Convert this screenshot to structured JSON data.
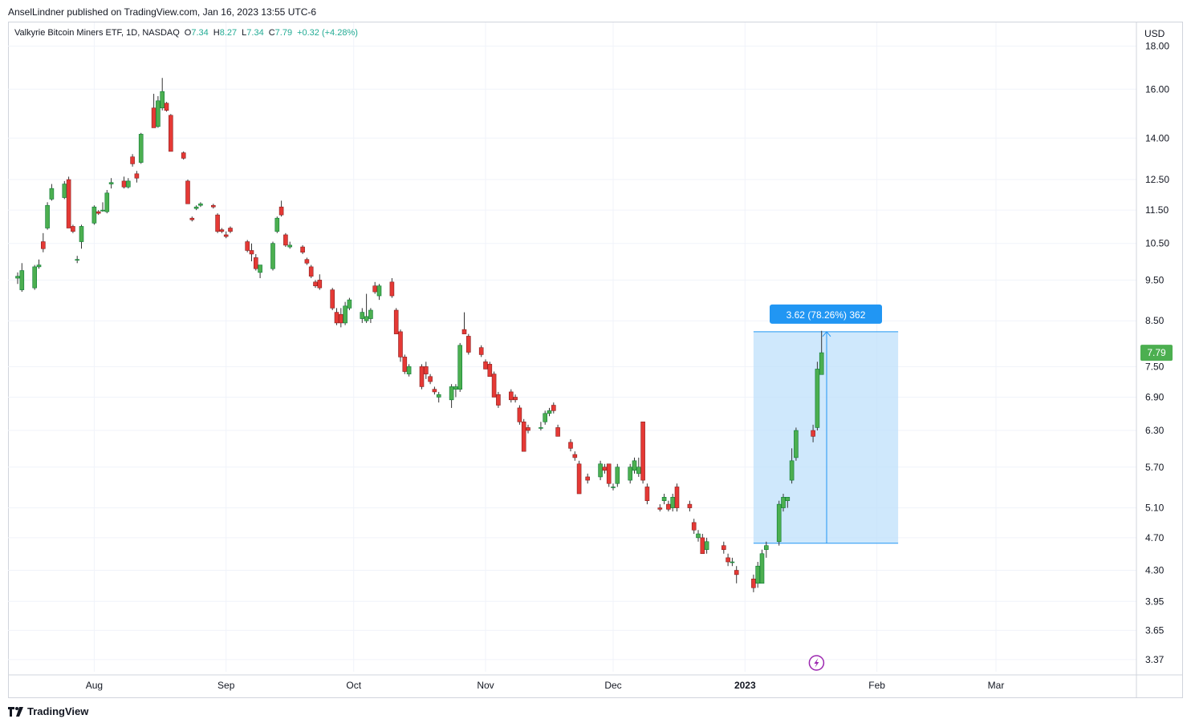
{
  "header": {
    "publish_line": "AnselLindner published on TradingView.com, Jan 16, 2023 13:55 UTC-6"
  },
  "legend": {
    "symbol": "Valkyrie Bitcoin Miners ETF, 1D, NASDAQ",
    "open_label": "O",
    "open": "7.34",
    "high_label": "H",
    "high": "8.27",
    "low_label": "L",
    "low": "7.34",
    "close_label": "C",
    "close": "7.79",
    "change": "+0.32 (+4.28%)"
  },
  "footer": {
    "brand": "TradingView",
    "logo_icon": "tradingview-logo-icon"
  },
  "colors": {
    "up": "#22ab94",
    "up_fill": "#4caf50",
    "down": "#f23645",
    "down_fill": "#e53935",
    "measure": "#2196f3",
    "measure_fill": "#bbdefb",
    "last_price": "#4caf50"
  },
  "chart_data": {
    "type": "candlestick",
    "title": "Valkyrie Bitcoin Miners ETF, 1D, NASDAQ",
    "currency": "USD",
    "y_scale": "log",
    "ylim": [
      3.26,
      19.2
    ],
    "y_ticks": [
      "18.00",
      "16.00",
      "14.00",
      "12.50",
      "11.50",
      "10.50",
      "9.50",
      "8.50",
      "7.50",
      "6.90",
      "6.30",
      "5.70",
      "5.10",
      "4.70",
      "4.30",
      "3.95",
      "3.65",
      "3.37"
    ],
    "x_ticks": [
      "Aug",
      "Sep",
      "Oct",
      "Nov",
      "Dec",
      "2023",
      "Feb",
      "Mar"
    ],
    "last_price": "7.79",
    "measure": {
      "label": "3.62 (78.26%) 362",
      "from_price": 4.63,
      "to_price": 8.25,
      "from_date": "2023-01-03",
      "to_date": "2023-02-06"
    },
    "event_icon": "bolt-icon",
    "candles": [
      {
        "d": "2022-07-14",
        "o": 9.55,
        "h": 9.7,
        "l": 9.4,
        "c": 9.6
      },
      {
        "d": "2022-07-15",
        "o": 9.25,
        "h": 9.95,
        "l": 9.2,
        "c": 9.75
      },
      {
        "d": "2022-07-18",
        "o": 9.3,
        "h": 9.9,
        "l": 9.25,
        "c": 9.85
      },
      {
        "d": "2022-07-19",
        "o": 9.85,
        "h": 10.05,
        "l": 9.8,
        "c": 9.9
      },
      {
        "d": "2022-07-20",
        "o": 10.55,
        "h": 10.8,
        "l": 10.25,
        "c": 10.35
      },
      {
        "d": "2022-07-21",
        "o": 10.95,
        "h": 11.75,
        "l": 10.9,
        "c": 11.65
      },
      {
        "d": "2022-07-22",
        "o": 11.85,
        "h": 12.35,
        "l": 11.8,
        "c": 12.2
      },
      {
        "d": "2022-07-25",
        "o": 11.9,
        "h": 12.45,
        "l": 11.85,
        "c": 12.35
      },
      {
        "d": "2022-07-26",
        "o": 12.5,
        "h": 12.6,
        "l": 10.95,
        "c": 10.95
      },
      {
        "d": "2022-07-27",
        "o": 11.0,
        "h": 11.05,
        "l": 10.8,
        "c": 10.85
      },
      {
        "d": "2022-07-28",
        "o": 10.05,
        "h": 10.15,
        "l": 9.95,
        "c": 10.05
      },
      {
        "d": "2022-07-29",
        "o": 10.55,
        "h": 11.05,
        "l": 10.35,
        "c": 11.0
      },
      {
        "d": "2022-08-01",
        "o": 11.1,
        "h": 11.65,
        "l": 11.05,
        "c": 11.6
      },
      {
        "d": "2022-08-02",
        "o": 11.45,
        "h": 11.5,
        "l": 11.35,
        "c": 11.4
      },
      {
        "d": "2022-08-03",
        "o": 11.5,
        "h": 11.75,
        "l": 11.45,
        "c": 11.5
      },
      {
        "d": "2022-08-04",
        "o": 11.45,
        "h": 12.15,
        "l": 11.4,
        "c": 12.05
      },
      {
        "d": "2022-08-05",
        "o": 12.35,
        "h": 12.55,
        "l": 12.2,
        "c": 12.4
      },
      {
        "d": "2022-08-08",
        "o": 12.45,
        "h": 12.6,
        "l": 12.2,
        "c": 12.25
      },
      {
        "d": "2022-08-09",
        "o": 12.25,
        "h": 12.55,
        "l": 12.2,
        "c": 12.45
      },
      {
        "d": "2022-08-10",
        "o": 13.3,
        "h": 13.4,
        "l": 12.95,
        "c": 13.05
      },
      {
        "d": "2022-08-11",
        "o": 12.7,
        "h": 12.8,
        "l": 12.4,
        "c": 12.55
      },
      {
        "d": "2022-08-12",
        "o": 13.1,
        "h": 14.2,
        "l": 13.05,
        "c": 14.15
      },
      {
        "d": "2022-08-15",
        "o": 15.2,
        "h": 15.8,
        "l": 14.4,
        "c": 14.4
      },
      {
        "d": "2022-08-16",
        "o": 14.45,
        "h": 15.7,
        "l": 14.4,
        "c": 15.5
      },
      {
        "d": "2022-08-17",
        "o": 15.2,
        "h": 16.5,
        "l": 15.1,
        "c": 15.9
      },
      {
        "d": "2022-08-18",
        "o": 15.4,
        "h": 15.45,
        "l": 15.05,
        "c": 15.1
      },
      {
        "d": "2022-08-19",
        "o": 14.9,
        "h": 14.95,
        "l": 13.5,
        "c": 13.5
      },
      {
        "d": "2022-08-22",
        "o": 13.45,
        "h": 13.5,
        "l": 13.2,
        "c": 13.25
      },
      {
        "d": "2022-08-23",
        "o": 12.45,
        "h": 12.5,
        "l": 11.7,
        "c": 11.7
      },
      {
        "d": "2022-08-24",
        "o": 11.25,
        "h": 11.3,
        "l": 11.15,
        "c": 11.2
      },
      {
        "d": "2022-08-25",
        "o": 11.55,
        "h": 11.65,
        "l": 11.5,
        "c": 11.6
      },
      {
        "d": "2022-08-26",
        "o": 11.65,
        "h": 11.75,
        "l": 11.6,
        "c": 11.7
      },
      {
        "d": "2022-08-29",
        "o": 11.65,
        "h": 11.7,
        "l": 11.55,
        "c": 11.6
      },
      {
        "d": "2022-08-30",
        "o": 11.35,
        "h": 11.4,
        "l": 10.8,
        "c": 10.85
      },
      {
        "d": "2022-08-31",
        "o": 10.9,
        "h": 10.95,
        "l": 10.8,
        "c": 10.85
      },
      {
        "d": "2022-09-01",
        "o": 10.75,
        "h": 10.85,
        "l": 10.65,
        "c": 10.7
      },
      {
        "d": "2022-09-02",
        "o": 10.95,
        "h": 11.0,
        "l": 10.8,
        "c": 10.85
      },
      {
        "d": "2022-09-06",
        "o": 10.55,
        "h": 10.6,
        "l": 10.25,
        "c": 10.3
      },
      {
        "d": "2022-09-07",
        "o": 10.3,
        "h": 10.5,
        "l": 10.0,
        "c": 10.2
      },
      {
        "d": "2022-09-08",
        "o": 10.1,
        "h": 10.2,
        "l": 9.75,
        "c": 9.8
      },
      {
        "d": "2022-09-09",
        "o": 9.7,
        "h": 9.9,
        "l": 9.55,
        "c": 9.9
      },
      {
        "d": "2022-09-12",
        "o": 9.8,
        "h": 10.55,
        "l": 9.75,
        "c": 10.5
      },
      {
        "d": "2022-09-13",
        "o": 10.85,
        "h": 11.3,
        "l": 10.8,
        "c": 11.25
      },
      {
        "d": "2022-09-14",
        "o": 11.6,
        "h": 11.8,
        "l": 11.3,
        "c": 11.35
      },
      {
        "d": "2022-09-15",
        "o": 10.75,
        "h": 10.8,
        "l": 10.4,
        "c": 10.45
      },
      {
        "d": "2022-09-16",
        "o": 10.4,
        "h": 10.55,
        "l": 10.35,
        "c": 10.45
      },
      {
        "d": "2022-09-19",
        "o": 10.4,
        "h": 10.45,
        "l": 10.2,
        "c": 10.25
      },
      {
        "d": "2022-09-20",
        "o": 10.05,
        "h": 10.1,
        "l": 9.9,
        "c": 9.95
      },
      {
        "d": "2022-09-21",
        "o": 9.85,
        "h": 9.9,
        "l": 9.55,
        "c": 9.6
      },
      {
        "d": "2022-09-22",
        "o": 9.45,
        "h": 9.5,
        "l": 9.3,
        "c": 9.35
      },
      {
        "d": "2022-09-23",
        "o": 9.5,
        "h": 9.65,
        "l": 9.25,
        "c": 9.3
      },
      {
        "d": "2022-09-26",
        "o": 9.25,
        "h": 9.3,
        "l": 8.75,
        "c": 8.8
      },
      {
        "d": "2022-09-27",
        "o": 8.7,
        "h": 8.8,
        "l": 8.4,
        "c": 8.45
      },
      {
        "d": "2022-09-28",
        "o": 8.65,
        "h": 8.8,
        "l": 8.35,
        "c": 8.45
      },
      {
        "d": "2022-09-29",
        "o": 8.45,
        "h": 8.95,
        "l": 8.4,
        "c": 8.85
      },
      {
        "d": "2022-09-30",
        "o": 8.8,
        "h": 9.05,
        "l": 8.75,
        "c": 9.0
      },
      {
        "d": "2022-10-03",
        "o": 8.55,
        "h": 8.8,
        "l": 8.45,
        "c": 8.7
      },
      {
        "d": "2022-10-04",
        "o": 8.5,
        "h": 9.15,
        "l": 8.45,
        "c": 8.6
      },
      {
        "d": "2022-10-05",
        "o": 8.55,
        "h": 8.8,
        "l": 8.45,
        "c": 8.75
      },
      {
        "d": "2022-10-06",
        "o": 9.35,
        "h": 9.45,
        "l": 9.15,
        "c": 9.2
      },
      {
        "d": "2022-10-07",
        "o": 9.1,
        "h": 9.4,
        "l": 9.0,
        "c": 9.35
      },
      {
        "d": "2022-10-10",
        "o": 9.45,
        "h": 9.55,
        "l": 9.05,
        "c": 9.1
      },
      {
        "d": "2022-10-11",
        "o": 8.75,
        "h": 8.8,
        "l": 8.2,
        "c": 8.2
      },
      {
        "d": "2022-10-12",
        "o": 8.25,
        "h": 8.3,
        "l": 7.6,
        "c": 7.7
      },
      {
        "d": "2022-10-13",
        "o": 7.7,
        "h": 7.75,
        "l": 7.35,
        "c": 7.4
      },
      {
        "d": "2022-10-14",
        "o": 7.35,
        "h": 7.55,
        "l": 7.3,
        "c": 7.5
      },
      {
        "d": "2022-10-17",
        "o": 7.5,
        "h": 7.55,
        "l": 7.05,
        "c": 7.1
      },
      {
        "d": "2022-10-18",
        "o": 7.5,
        "h": 7.6,
        "l": 7.25,
        "c": 7.35
      },
      {
        "d": "2022-10-19",
        "o": 7.3,
        "h": 7.35,
        "l": 7.15,
        "c": 7.2
      },
      {
        "d": "2022-10-20",
        "o": 7.05,
        "h": 7.1,
        "l": 6.95,
        "c": 7.0
      },
      {
        "d": "2022-10-21",
        "o": 6.9,
        "h": 7.0,
        "l": 6.8,
        "c": 6.95
      },
      {
        "d": "2022-10-24",
        "o": 6.85,
        "h": 7.15,
        "l": 6.7,
        "c": 7.1
      },
      {
        "d": "2022-10-25",
        "o": 7.05,
        "h": 7.15,
        "l": 6.9,
        "c": 7.1
      },
      {
        "d": "2022-10-26",
        "o": 7.05,
        "h": 8.0,
        "l": 7.0,
        "c": 7.95
      },
      {
        "d": "2022-10-27",
        "o": 8.3,
        "h": 8.7,
        "l": 8.2,
        "c": 8.2
      },
      {
        "d": "2022-10-28",
        "o": 8.15,
        "h": 8.2,
        "l": 7.75,
        "c": 7.8
      },
      {
        "d": "2022-10-31",
        "o": 7.9,
        "h": 7.95,
        "l": 7.7,
        "c": 7.75
      },
      {
        "d": "2022-11-01",
        "o": 7.6,
        "h": 7.65,
        "l": 7.45,
        "c": 7.45
      },
      {
        "d": "2022-11-02",
        "o": 7.55,
        "h": 7.6,
        "l": 7.3,
        "c": 7.3
      },
      {
        "d": "2022-11-03",
        "o": 7.35,
        "h": 7.4,
        "l": 6.9,
        "c": 6.9
      },
      {
        "d": "2022-11-04",
        "o": 6.95,
        "h": 7.0,
        "l": 6.7,
        "c": 6.75
      },
      {
        "d": "2022-11-07",
        "o": 7.0,
        "h": 7.05,
        "l": 6.8,
        "c": 6.85
      },
      {
        "d": "2022-11-08",
        "o": 6.9,
        "h": 6.95,
        "l": 6.8,
        "c": 6.85
      },
      {
        "d": "2022-11-09",
        "o": 6.7,
        "h": 6.75,
        "l": 6.4,
        "c": 6.45
      },
      {
        "d": "2022-11-10",
        "o": 6.45,
        "h": 6.5,
        "l": 5.95,
        "c": 5.95
      },
      {
        "d": "2022-11-11",
        "o": 6.35,
        "h": 6.4,
        "l": 6.25,
        "c": 6.3
      },
      {
        "d": "2022-11-14",
        "o": 6.35,
        "h": 6.45,
        "l": 6.3,
        "c": 6.35
      },
      {
        "d": "2022-11-15",
        "o": 6.45,
        "h": 6.65,
        "l": 6.4,
        "c": 6.6
      },
      {
        "d": "2022-11-16",
        "o": 6.6,
        "h": 6.7,
        "l": 6.55,
        "c": 6.65
      },
      {
        "d": "2022-11-17",
        "o": 6.75,
        "h": 6.8,
        "l": 6.6,
        "c": 6.65
      },
      {
        "d": "2022-11-18",
        "o": 6.35,
        "h": 6.4,
        "l": 6.2,
        "c": 6.2
      },
      {
        "d": "2022-11-21",
        "o": 6.1,
        "h": 6.15,
        "l": 5.95,
        "c": 6.0
      },
      {
        "d": "2022-11-22",
        "o": 5.9,
        "h": 5.95,
        "l": 5.8,
        "c": 5.85
      },
      {
        "d": "2022-11-23",
        "o": 5.75,
        "h": 5.8,
        "l": 5.3,
        "c": 5.3
      },
      {
        "d": "2022-11-25",
        "o": 5.55,
        "h": 5.6,
        "l": 5.45,
        "c": 5.5
      },
      {
        "d": "2022-11-28",
        "o": 5.55,
        "h": 5.8,
        "l": 5.5,
        "c": 5.75
      },
      {
        "d": "2022-11-29",
        "o": 5.7,
        "h": 5.75,
        "l": 5.6,
        "c": 5.65
      },
      {
        "d": "2022-11-30",
        "o": 5.75,
        "h": 5.75,
        "l": 5.4,
        "c": 5.45
      },
      {
        "d": "2022-12-01",
        "o": 5.4,
        "h": 5.45,
        "l": 5.35,
        "c": 5.4
      },
      {
        "d": "2022-12-02",
        "o": 5.45,
        "h": 5.75,
        "l": 5.4,
        "c": 5.7
      },
      {
        "d": "2022-12-05",
        "o": 5.5,
        "h": 5.75,
        "l": 5.45,
        "c": 5.7
      },
      {
        "d": "2022-12-06",
        "o": 5.65,
        "h": 5.85,
        "l": 5.6,
        "c": 5.8
      },
      {
        "d": "2022-12-07",
        "o": 5.6,
        "h": 5.85,
        "l": 5.55,
        "c": 5.7
      },
      {
        "d": "2022-12-08",
        "o": 6.45,
        "h": 6.45,
        "l": 5.45,
        "c": 5.5
      },
      {
        "d": "2022-12-09",
        "o": 5.4,
        "h": 5.45,
        "l": 5.15,
        "c": 5.2
      },
      {
        "d": "2022-12-12",
        "o": 5.1,
        "h": 5.15,
        "l": 5.05,
        "c": 5.08
      },
      {
        "d": "2022-12-13",
        "o": 5.2,
        "h": 5.3,
        "l": 5.15,
        "c": 5.25
      },
      {
        "d": "2022-12-14",
        "o": 5.15,
        "h": 5.2,
        "l": 5.05,
        "c": 5.08
      },
      {
        "d": "2022-12-15",
        "o": 5.1,
        "h": 5.3,
        "l": 5.05,
        "c": 5.25
      },
      {
        "d": "2022-12-16",
        "o": 5.4,
        "h": 5.45,
        "l": 5.05,
        "c": 5.1
      },
      {
        "d": "2022-12-19",
        "o": 5.15,
        "h": 5.2,
        "l": 5.05,
        "c": 5.1
      },
      {
        "d": "2022-12-20",
        "o": 4.9,
        "h": 4.95,
        "l": 4.75,
        "c": 4.8
      },
      {
        "d": "2022-12-21",
        "o": 4.7,
        "h": 4.8,
        "l": 4.65,
        "c": 4.75
      },
      {
        "d": "2022-12-22",
        "o": 4.7,
        "h": 4.75,
        "l": 4.5,
        "c": 4.5
      },
      {
        "d": "2022-12-23",
        "o": 4.55,
        "h": 4.7,
        "l": 4.5,
        "c": 4.65
      },
      {
        "d": "2022-12-27",
        "o": 4.6,
        "h": 4.65,
        "l": 4.5,
        "c": 4.55
      },
      {
        "d": "2022-12-28",
        "o": 4.45,
        "h": 4.5,
        "l": 4.35,
        "c": 4.4
      },
      {
        "d": "2022-12-29",
        "o": 4.4,
        "h": 4.45,
        "l": 4.35,
        "c": 4.4
      },
      {
        "d": "2022-12-30",
        "o": 4.3,
        "h": 4.35,
        "l": 4.15,
        "c": 4.25
      },
      {
        "d": "2023-01-03",
        "o": 4.2,
        "h": 4.25,
        "l": 4.05,
        "c": 4.1
      },
      {
        "d": "2023-01-04",
        "o": 4.15,
        "h": 4.4,
        "l": 4.1,
        "c": 4.35
      },
      {
        "d": "2023-01-05",
        "o": 4.15,
        "h": 4.55,
        "l": 4.15,
        "c": 4.5
      },
      {
        "d": "2023-01-06",
        "o": 4.55,
        "h": 4.65,
        "l": 4.45,
        "c": 4.6
      },
      {
        "d": "2023-01-09",
        "o": 4.65,
        "h": 5.2,
        "l": 4.6,
        "c": 5.15
      },
      {
        "d": "2023-01-10",
        "o": 5.1,
        "h": 5.3,
        "l": 5.05,
        "c": 5.25
      },
      {
        "d": "2023-01-11",
        "o": 5.2,
        "h": 5.25,
        "l": 5.1,
        "c": 5.25
      },
      {
        "d": "2023-01-12",
        "o": 5.5,
        "h": 6.0,
        "l": 5.45,
        "c": 5.8
      },
      {
        "d": "2023-01-13",
        "o": 5.85,
        "h": 6.35,
        "l": 5.8,
        "c": 6.3
      },
      {
        "d": "2023-01-17",
        "o": 6.3,
        "h": 6.4,
        "l": 6.1,
        "c": 6.2
      },
      {
        "d": "2023-01-18",
        "o": 6.35,
        "h": 7.6,
        "l": 6.3,
        "c": 7.45
      },
      {
        "d": "2023-01-19",
        "o": 7.34,
        "h": 8.27,
        "l": 7.34,
        "c": 7.79
      }
    ]
  }
}
